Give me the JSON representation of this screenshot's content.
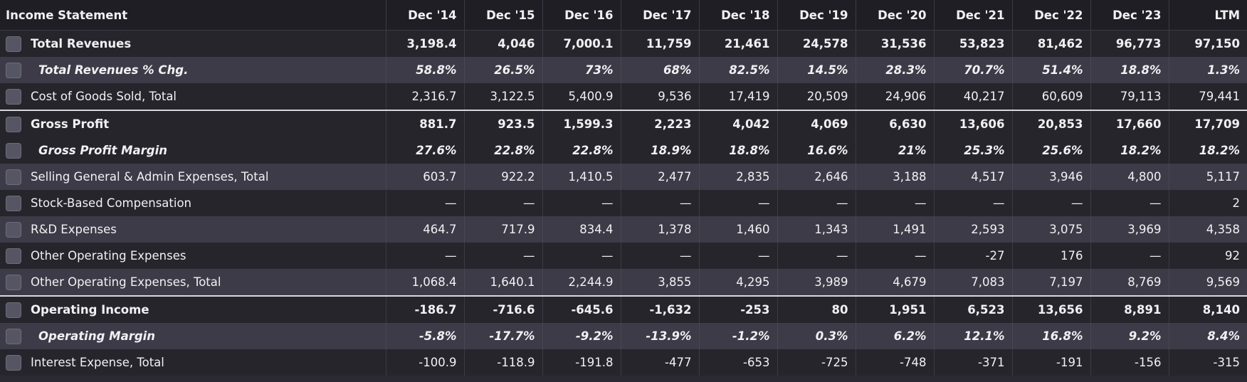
{
  "header": {
    "title": "Income Statement",
    "columns": [
      "Dec '14",
      "Dec '15",
      "Dec '16",
      "Dec '17",
      "Dec '18",
      "Dec '19",
      "Dec '20",
      "Dec '21",
      "Dec '22",
      "Dec '23",
      "LTM"
    ]
  },
  "rows": [
    {
      "label": "Total Revenues",
      "values": [
        "3,198.4",
        "4,046",
        "7,000.1",
        "11,759",
        "21,461",
        "24,578",
        "31,536",
        "53,823",
        "81,462",
        "96,773",
        "97,150"
      ]
    },
    {
      "label": "Total Revenues % Chg.",
      "values": [
        "58.8%",
        "26.5%",
        "73%",
        "68%",
        "82.5%",
        "14.5%",
        "28.3%",
        "70.7%",
        "51.4%",
        "18.8%",
        "1.3%"
      ]
    },
    {
      "label": "Cost of Goods Sold, Total",
      "values": [
        "2,316.7",
        "3,122.5",
        "5,400.9",
        "9,536",
        "17,419",
        "20,509",
        "24,906",
        "40,217",
        "60,609",
        "79,113",
        "79,441"
      ]
    },
    {
      "label": "Gross Profit",
      "values": [
        "881.7",
        "923.5",
        "1,599.3",
        "2,223",
        "4,042",
        "4,069",
        "6,630",
        "13,606",
        "20,853",
        "17,660",
        "17,709"
      ]
    },
    {
      "label": "Gross Profit Margin",
      "values": [
        "27.6%",
        "22.8%",
        "22.8%",
        "18.9%",
        "18.8%",
        "16.6%",
        "21%",
        "25.3%",
        "25.6%",
        "18.2%",
        "18.2%"
      ]
    },
    {
      "label": "Selling General & Admin Expenses, Total",
      "values": [
        "603.7",
        "922.2",
        "1,410.5",
        "2,477",
        "2,835",
        "2,646",
        "3,188",
        "4,517",
        "3,946",
        "4,800",
        "5,117"
      ]
    },
    {
      "label": "Stock-Based Compensation",
      "values": [
        "—",
        "—",
        "—",
        "—",
        "—",
        "—",
        "—",
        "—",
        "—",
        "—",
        "2"
      ]
    },
    {
      "label": "R&D Expenses",
      "values": [
        "464.7",
        "717.9",
        "834.4",
        "1,378",
        "1,460",
        "1,343",
        "1,491",
        "2,593",
        "3,075",
        "3,969",
        "4,358"
      ]
    },
    {
      "label": "Other Operating Expenses",
      "values": [
        "—",
        "—",
        "—",
        "—",
        "—",
        "—",
        "—",
        "-27",
        "176",
        "—",
        "92"
      ]
    },
    {
      "label": "Other Operating Expenses, Total",
      "values": [
        "1,068.4",
        "1,640.1",
        "2,244.9",
        "3,855",
        "4,295",
        "3,989",
        "4,679",
        "7,083",
        "7,197",
        "8,769",
        "9,569"
      ]
    },
    {
      "label": "Operating Income",
      "values": [
        "-186.7",
        "-716.6",
        "-645.6",
        "-1,632",
        "-253",
        "80",
        "1,951",
        "6,523",
        "13,656",
        "8,891",
        "8,140"
      ]
    },
    {
      "label": "Operating Margin",
      "values": [
        "-5.8%",
        "-17.7%",
        "-9.2%",
        "-13.9%",
        "-1.2%",
        "0.3%",
        "6.2%",
        "12.1%",
        "16.8%",
        "9.2%",
        "8.4%"
      ]
    },
    {
      "label": "Interest Expense, Total",
      "values": [
        "-100.9",
        "-118.9",
        "-191.8",
        "-477",
        "-653",
        "-725",
        "-748",
        "-371",
        "-191",
        "-156",
        "-315"
      ]
    }
  ]
}
